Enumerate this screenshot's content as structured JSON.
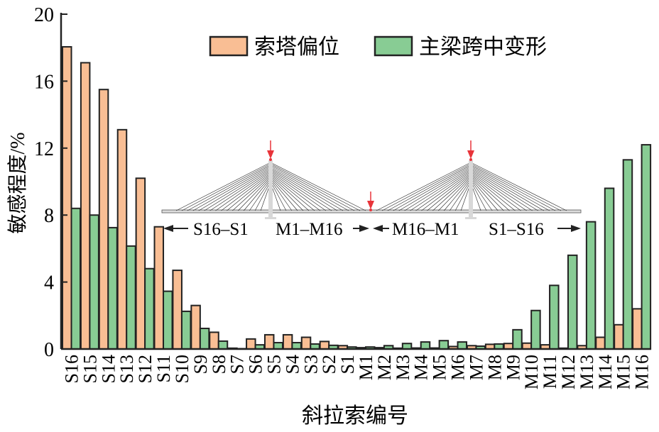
{
  "chart_data": {
    "type": "bar",
    "title": "",
    "xlabel": "斜拉索编号",
    "ylabel": "敏感程度/%",
    "ylim": [
      0,
      20
    ],
    "yticks": [
      0,
      4,
      8,
      12,
      16,
      20
    ],
    "grid": false,
    "legend_position": "top-right",
    "categories": [
      "S16",
      "S15",
      "S14",
      "S13",
      "S12",
      "S11",
      "S10",
      "S9",
      "S8",
      "S7",
      "S6",
      "S5",
      "S4",
      "S3",
      "S2",
      "S1",
      "M1",
      "M2",
      "M3",
      "M4",
      "M5",
      "M6",
      "M7",
      "M8",
      "M9",
      "M10",
      "M11",
      "M12",
      "M13",
      "M14",
      "M15",
      "M16"
    ],
    "series": [
      {
        "name": "索塔偏位",
        "color": "#F9BE94",
        "values": [
          18.05,
          17.1,
          15.5,
          13.1,
          10.2,
          7.3,
          4.7,
          2.6,
          1.0,
          0.05,
          0.6,
          0.85,
          0.85,
          0.7,
          0.45,
          0.2,
          0.08,
          0.08,
          0.05,
          0.06,
          0.06,
          0.15,
          0.2,
          0.28,
          0.33,
          0.35,
          0.25,
          0.05,
          0.2,
          0.7,
          1.45,
          2.4
        ]
      },
      {
        "name": "主梁跨中变形",
        "color": "#88CC94",
        "values": [
          8.4,
          8.0,
          7.25,
          6.15,
          4.8,
          3.45,
          2.25,
          1.23,
          0.47,
          0.02,
          0.25,
          0.38,
          0.38,
          0.3,
          0.22,
          0.12,
          0.12,
          0.2,
          0.33,
          0.42,
          0.5,
          0.42,
          0.17,
          0.3,
          1.15,
          2.3,
          3.8,
          5.6,
          7.6,
          9.6,
          11.3,
          12.2
        ]
      }
    ],
    "annotations": [
      "S16–S1",
      "M1–M16",
      "M16–M1",
      "S1–S16"
    ],
    "arrow_color": "#E8343A"
  }
}
